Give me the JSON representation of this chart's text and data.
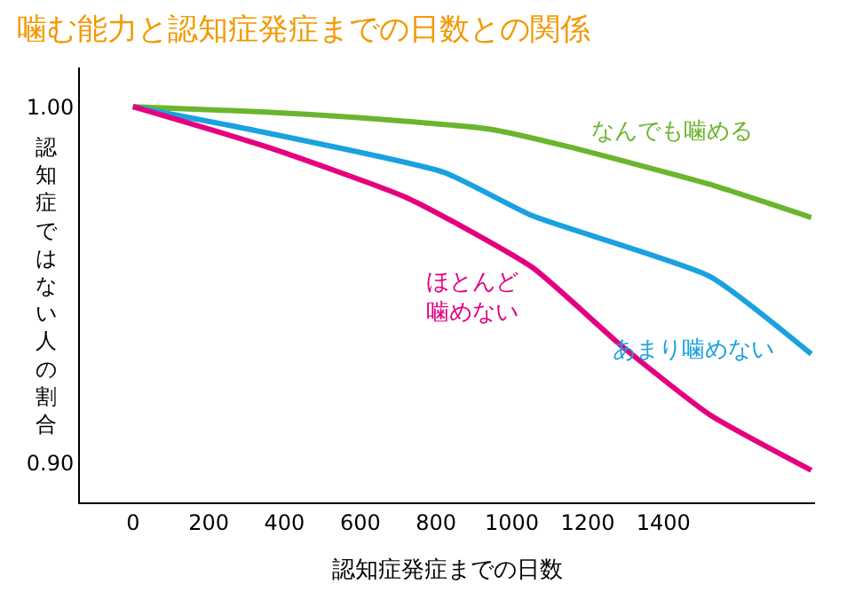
{
  "chart_data": {
    "type": "line",
    "title": "噛む能力と認知症発症までの日数との関係",
    "xlabel": "認知症発症までの日数",
    "ylabel": "認知症ではない人の割合",
    "x": [
      0,
      351,
      585,
      726,
      820,
      941,
      1054,
      1148,
      1288,
      1522,
      1790
    ],
    "xlim": [
      -140,
      1800
    ],
    "xticks": [
      0,
      200,
      400,
      600,
      800,
      1000,
      1200,
      1400
    ],
    "ylim": [
      0.889,
      1.011
    ],
    "yticks": [
      {
        "value": 1.0,
        "label": "1.00"
      },
      {
        "value": 0.9,
        "label": "0.90"
      }
    ],
    "legend": false,
    "marker": "none",
    "line_style": "solid",
    "series": [
      {
        "name": "なんでも噛める",
        "color": "#6ab52e",
        "values": [
          1.0,
          0.9985,
          0.997,
          null,
          null,
          0.9937,
          null,
          0.9888,
          null,
          0.9782,
          0.9689
        ]
      },
      {
        "name": "あまり噛めない",
        "color": "#1aa1e0",
        "values": [
          1.0,
          0.9927,
          null,
          null,
          0.9816,
          null,
          0.9694,
          null,
          null,
          0.9524,
          0.9306
        ]
      },
      {
        "name": "ほとんど噛めない",
        "color": "#e4007f",
        "values": [
          1.0,
          0.9888,
          null,
          0.9743,
          null,
          null,
          0.9549,
          null,
          0.933,
          0.9136,
          0.898
        ]
      }
    ]
  }
}
